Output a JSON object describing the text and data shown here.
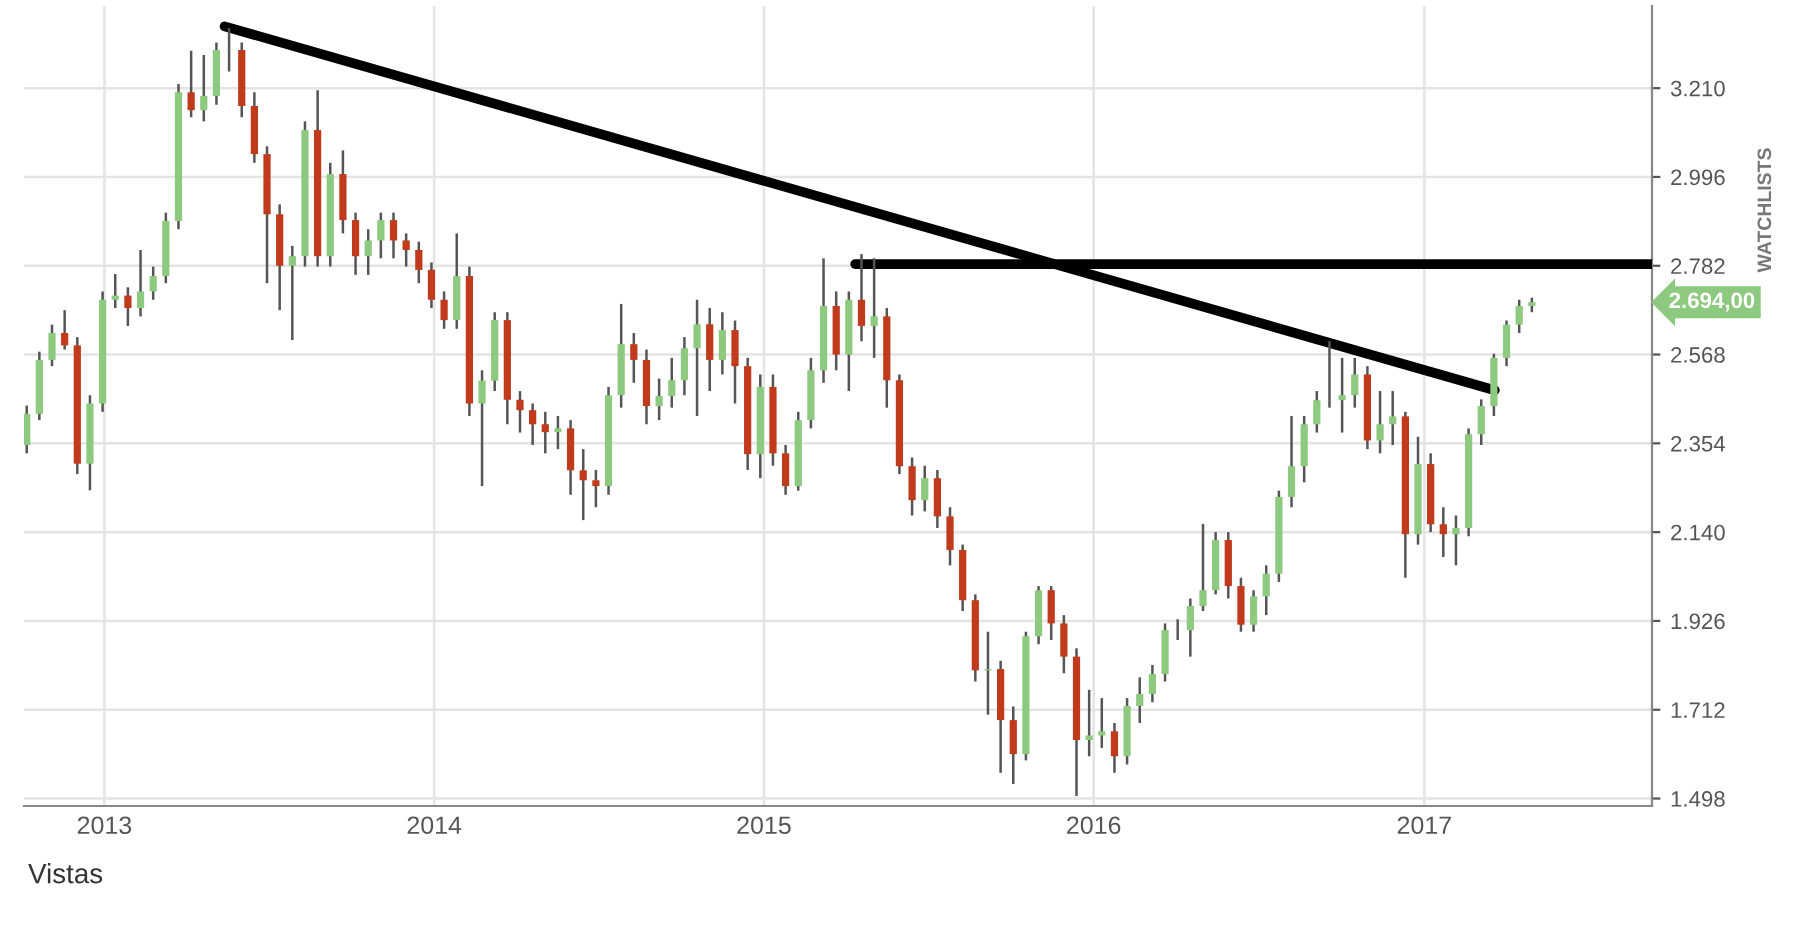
{
  "chart_data": {
    "type": "candlestick",
    "x": [
      "2012-10-07",
      "2012-10-21",
      "2012-11-04",
      "2012-11-18",
      "2012-12-02",
      "2012-12-16",
      "2012-12-30",
      "2013-01-13",
      "2013-01-27",
      "2013-02-10",
      "2013-02-24",
      "2013-03-10",
      "2013-03-24",
      "2013-04-07",
      "2013-04-21",
      "2013-05-05",
      "2013-05-19",
      "2013-06-02",
      "2013-06-16",
      "2013-06-30",
      "2013-07-14",
      "2013-07-28",
      "2013-08-11",
      "2013-08-25",
      "2013-09-08",
      "2013-09-22",
      "2013-10-06",
      "2013-10-20",
      "2013-11-03",
      "2013-11-17",
      "2013-12-01",
      "2013-12-15",
      "2013-12-29",
      "2014-01-12",
      "2014-01-26",
      "2014-02-09",
      "2014-02-23",
      "2014-03-09",
      "2014-03-23",
      "2014-04-06",
      "2014-04-20",
      "2014-05-04",
      "2014-05-18",
      "2014-06-01",
      "2014-06-15",
      "2014-06-29",
      "2014-07-13",
      "2014-07-27",
      "2014-08-10",
      "2014-08-24",
      "2014-09-07",
      "2014-09-21",
      "2014-10-05",
      "2014-10-19",
      "2014-11-02",
      "2014-11-16",
      "2014-11-30",
      "2014-12-14",
      "2014-12-28",
      "2015-01-11",
      "2015-01-25",
      "2015-02-08",
      "2015-02-22",
      "2015-03-08",
      "2015-03-22",
      "2015-04-05",
      "2015-04-19",
      "2015-05-03",
      "2015-05-17",
      "2015-05-31",
      "2015-06-14",
      "2015-06-28",
      "2015-07-12",
      "2015-07-26",
      "2015-08-09",
      "2015-08-23",
      "2015-09-06",
      "2015-09-20",
      "2015-10-04",
      "2015-10-18",
      "2015-11-01",
      "2015-11-15",
      "2015-11-29",
      "2015-12-13",
      "2015-12-27",
      "2016-01-10",
      "2016-01-24",
      "2016-02-07",
      "2016-02-21",
      "2016-03-06",
      "2016-03-20",
      "2016-04-03",
      "2016-04-17",
      "2016-05-01",
      "2016-05-15",
      "2016-05-29",
      "2016-06-12",
      "2016-06-26",
      "2016-07-10",
      "2016-07-24",
      "2016-08-07",
      "2016-08-21",
      "2016-09-04",
      "2016-09-18",
      "2016-10-02",
      "2016-10-16",
      "2016-10-30",
      "2016-11-13",
      "2016-11-27",
      "2016-12-11",
      "2016-12-25",
      "2017-01-08",
      "2017-01-22",
      "2017-02-05",
      "2017-02-19",
      "2017-03-05",
      "2017-03-19",
      "2017-04-02",
      "2017-04-16",
      "2017-04-30"
    ],
    "ohlc": [
      [
        2350,
        2445,
        2330,
        2425
      ],
      [
        2425,
        2575,
        2410,
        2555
      ],
      [
        2555,
        2640,
        2540,
        2620
      ],
      [
        2620,
        2675,
        2580,
        2590
      ],
      [
        2590,
        2610,
        2280,
        2305
      ],
      [
        2305,
        2470,
        2241,
        2450
      ],
      [
        2450,
        2720,
        2430,
        2700
      ],
      [
        2700,
        2762,
        2680,
        2710
      ],
      [
        2710,
        2730,
        2637,
        2680
      ],
      [
        2680,
        2820,
        2660,
        2720
      ],
      [
        2720,
        2780,
        2700,
        2757
      ],
      [
        2757,
        2910,
        2740,
        2890
      ],
      [
        2890,
        3220,
        2870,
        3200
      ],
      [
        3200,
        3300,
        3140,
        3157
      ],
      [
        3157,
        3290,
        3130,
        3191
      ],
      [
        3191,
        3320,
        3170,
        3302
      ],
      [
        3302,
        3355,
        3250,
        3302
      ],
      [
        3302,
        3320,
        3140,
        3167
      ],
      [
        3167,
        3200,
        3030,
        3051
      ],
      [
        3051,
        3070,
        2740,
        2906
      ],
      [
        2906,
        2930,
        2675,
        2782
      ],
      [
        2782,
        2830,
        2603,
        2805
      ],
      [
        2805,
        3130,
        2780,
        3109
      ],
      [
        3109,
        3205,
        2780,
        2805
      ],
      [
        2805,
        3030,
        2780,
        3003
      ],
      [
        3003,
        3060,
        2860,
        2892
      ],
      [
        2892,
        2910,
        2760,
        2805
      ],
      [
        2805,
        2870,
        2760,
        2843
      ],
      [
        2843,
        2910,
        2800,
        2892
      ],
      [
        2892,
        2910,
        2800,
        2843
      ],
      [
        2843,
        2860,
        2780,
        2820
      ],
      [
        2820,
        2840,
        2740,
        2772
      ],
      [
        2772,
        2790,
        2680,
        2700
      ],
      [
        2700,
        2720,
        2630,
        2651
      ],
      [
        2651,
        2860,
        2630,
        2757
      ],
      [
        2757,
        2780,
        2420,
        2450
      ],
      [
        2450,
        2530,
        2251,
        2505
      ],
      [
        2505,
        2670,
        2480,
        2651
      ],
      [
        2651,
        2670,
        2400,
        2459
      ],
      [
        2459,
        2480,
        2380,
        2434
      ],
      [
        2434,
        2450,
        2350,
        2400
      ],
      [
        2400,
        2430,
        2330,
        2381
      ],
      [
        2381,
        2420,
        2340,
        2390
      ],
      [
        2390,
        2410,
        2230,
        2289
      ],
      [
        2289,
        2340,
        2169,
        2265
      ],
      [
        2265,
        2290,
        2200,
        2251
      ],
      [
        2251,
        2490,
        2230,
        2470
      ],
      [
        2470,
        2690,
        2440,
        2593
      ],
      [
        2593,
        2620,
        2500,
        2555
      ],
      [
        2555,
        2580,
        2400,
        2444
      ],
      [
        2444,
        2510,
        2410,
        2468
      ],
      [
        2468,
        2560,
        2440,
        2506
      ],
      [
        2506,
        2610,
        2470,
        2583
      ],
      [
        2583,
        2700,
        2420,
        2641
      ],
      [
        2641,
        2680,
        2480,
        2555
      ],
      [
        2555,
        2670,
        2520,
        2627
      ],
      [
        2627,
        2650,
        2450,
        2540
      ],
      [
        2540,
        2560,
        2290,
        2328
      ],
      [
        2328,
        2520,
        2270,
        2490
      ],
      [
        2490,
        2520,
        2300,
        2330
      ],
      [
        2330,
        2350,
        2230,
        2251
      ],
      [
        2251,
        2430,
        2240,
        2410
      ],
      [
        2410,
        2560,
        2390,
        2530
      ],
      [
        2530,
        2800,
        2500,
        2685
      ],
      [
        2685,
        2720,
        2530,
        2568
      ],
      [
        2568,
        2720,
        2480,
        2700
      ],
      [
        2700,
        2810,
        2600,
        2637
      ],
      [
        2637,
        2800,
        2560,
        2660
      ],
      [
        2660,
        2680,
        2440,
        2506
      ],
      [
        2506,
        2520,
        2280,
        2299
      ],
      [
        2299,
        2320,
        2180,
        2217
      ],
      [
        2217,
        2300,
        2190,
        2270
      ],
      [
        2270,
        2290,
        2150,
        2178
      ],
      [
        2178,
        2200,
        2060,
        2097
      ],
      [
        2097,
        2110,
        1950,
        1976
      ],
      [
        1976,
        1990,
        1780,
        1807
      ],
      [
        1807,
        1900,
        1700,
        1810
      ],
      [
        1810,
        1830,
        1560,
        1687
      ],
      [
        1687,
        1720,
        1533,
        1605
      ],
      [
        1605,
        1900,
        1590,
        1889
      ],
      [
        1889,
        2010,
        1870,
        2000
      ],
      [
        2000,
        2010,
        1880,
        1920
      ],
      [
        1920,
        1940,
        1800,
        1840
      ],
      [
        1840,
        1860,
        1504,
        1639
      ],
      [
        1639,
        1760,
        1600,
        1650
      ],
      [
        1650,
        1740,
        1620,
        1660
      ],
      [
        1660,
        1680,
        1560,
        1600
      ],
      [
        1600,
        1740,
        1580,
        1721
      ],
      [
        1721,
        1790,
        1680,
        1750
      ],
      [
        1750,
        1820,
        1730,
        1798
      ],
      [
        1798,
        1920,
        1780,
        1904
      ],
      [
        1904,
        1930,
        1880,
        1904
      ],
      [
        1904,
        1980,
        1840,
        1962
      ],
      [
        1962,
        2160,
        1950,
        2000
      ],
      [
        2000,
        2140,
        1990,
        2121
      ],
      [
        2121,
        2140,
        1980,
        2010
      ],
      [
        2010,
        2030,
        1900,
        1917
      ],
      [
        1917,
        2000,
        1900,
        1985
      ],
      [
        1985,
        2060,
        1940,
        2040
      ],
      [
        2040,
        2240,
        2020,
        2225
      ],
      [
        2225,
        2420,
        2200,
        2299
      ],
      [
        2299,
        2420,
        2260,
        2400
      ],
      [
        2400,
        2480,
        2380,
        2458
      ],
      [
        2458,
        2600,
        2440,
        2458
      ],
      [
        2458,
        2560,
        2380,
        2470
      ],
      [
        2470,
        2560,
        2440,
        2520
      ],
      [
        2520,
        2540,
        2340,
        2361
      ],
      [
        2361,
        2480,
        2330,
        2400
      ],
      [
        2400,
        2480,
        2350,
        2419
      ],
      [
        2419,
        2430,
        2030,
        2135
      ],
      [
        2135,
        2370,
        2110,
        2304
      ],
      [
        2304,
        2330,
        2140,
        2159
      ],
      [
        2159,
        2200,
        2080,
        2135
      ],
      [
        2135,
        2180,
        2060,
        2150
      ],
      [
        2150,
        2390,
        2130,
        2376
      ],
      [
        2376,
        2460,
        2350,
        2444
      ],
      [
        2444,
        2570,
        2420,
        2560
      ],
      [
        2560,
        2650,
        2540,
        2640
      ],
      [
        2640,
        2700,
        2620,
        2685
      ],
      [
        2685,
        2705,
        2670,
        2694
      ]
    ],
    "series": [
      {
        "type": "line",
        "color": "#000000",
        "x": [
          "2013-05-14",
          "2017-03-20"
        ],
        "values": [
          3359,
          2482
        ]
      },
      {
        "type": "line",
        "color": "#000000",
        "x": [
          "2015-04-12",
          "2017-09-10"
        ],
        "values": [
          2786,
          2786
        ]
      }
    ],
    "xlim": [
      "2012-10-04",
      "2017-09-10"
    ],
    "xticks": [
      {
        "value": "2013-01-01",
        "label": "2013"
      },
      {
        "value": "2014-01-01",
        "label": "2014"
      },
      {
        "value": "2015-01-01",
        "label": "2015"
      },
      {
        "value": "2016-01-01",
        "label": "2016"
      },
      {
        "value": "2017-01-01",
        "label": "2017"
      }
    ],
    "ylim": [
      1480,
      3408
    ],
    "yticks": [
      {
        "value": 1498,
        "label": "1.498"
      },
      {
        "value": 1712,
        "label": "1.712"
      },
      {
        "value": 1926,
        "label": "1.926"
      },
      {
        "value": 2140,
        "label": "2.140"
      },
      {
        "value": 2354,
        "label": "2.354"
      },
      {
        "value": 2568,
        "label": "2.568"
      },
      {
        "value": 2782,
        "label": "2.782"
      },
      {
        "value": 2996,
        "label": "2.996"
      },
      {
        "value": 3210,
        "label": "3.210"
      }
    ],
    "grid": true,
    "annotations": [
      "2.694,00",
      "WATCHLISTS",
      "Vistas"
    ]
  }
}
